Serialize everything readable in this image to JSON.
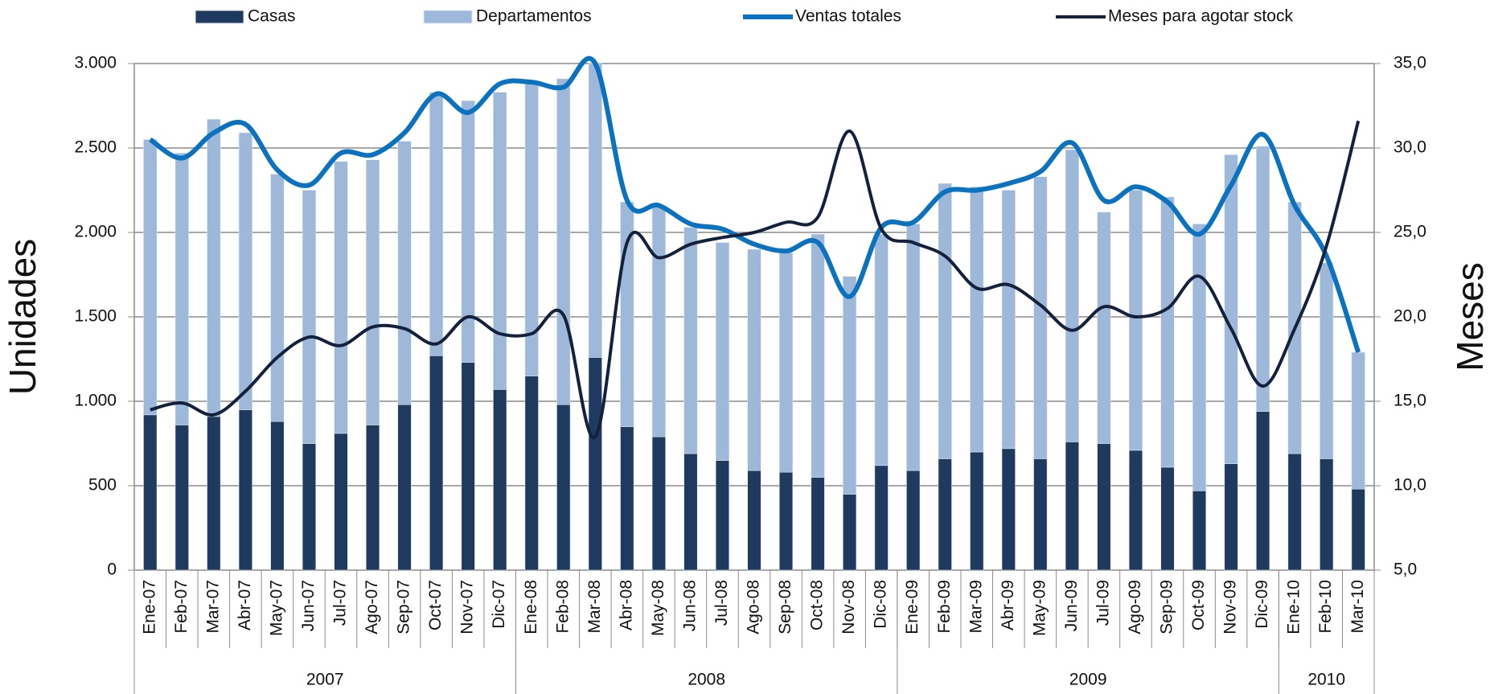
{
  "chart_data": {
    "type": "bar",
    "y_label": "Unidades",
    "y2_label": "Meses",
    "groups": [
      {
        "name": "2007",
        "categories": [
          "Ene-07",
          "Feb-07",
          "Mar-07",
          "Abr-07",
          "May-07",
          "Jun-07",
          "Jul-07",
          "Ago-07",
          "Sep-07",
          "Oct-07",
          "Nov-07",
          "Dic-07"
        ]
      },
      {
        "name": "2008",
        "categories": [
          "Ene-08",
          "Feb-08",
          "Mar-08",
          "Abr-08",
          "May-08",
          "Jun-08",
          "Jul-08",
          "Ago-08",
          "Sep-08",
          "Oct-08",
          "Nov-08",
          "Dic-08"
        ]
      },
      {
        "name": "2009",
        "categories": [
          "Ene-09",
          "Feb-09",
          "Mar-09",
          "Abr-09",
          "May-09",
          "Jun-09",
          "Jul-09",
          "Ago-09",
          "Sep-09",
          "Oct-09",
          "Nov-09",
          "Dic-09"
        ]
      },
      {
        "name": "2010",
        "categories": [
          "Ene-10",
          "Feb-10",
          "Mar-10"
        ]
      }
    ],
    "series": [
      {
        "name": "Casas",
        "type": "bar",
        "color": "#1f3a5f",
        "values": [
          920,
          860,
          910,
          950,
          880,
          750,
          810,
          860,
          980,
          1270,
          1230,
          1070,
          1150,
          980,
          1260,
          850,
          790,
          690,
          650,
          590,
          580,
          550,
          450,
          620,
          590,
          660,
          700,
          720,
          660,
          760,
          750,
          710,
          610,
          470,
          630,
          940,
          690,
          660,
          480
        ]
      },
      {
        "name": "Departamentos",
        "type": "bar",
        "color": "#9db8d9",
        "values": [
          1630,
          1610,
          1760,
          1640,
          1465,
          1500,
          1610,
          1570,
          1560,
          1560,
          1550,
          1760,
          1730,
          1930,
          1740,
          1330,
          1360,
          1340,
          1290,
          1310,
          1300,
          1440,
          1290,
          1370,
          1460,
          1630,
          1570,
          1530,
          1670,
          1730,
          1370,
          1540,
          1600,
          1580,
          1830,
          1570,
          1490,
          1160,
          810
        ]
      },
      {
        "name": "Ventas totales",
        "type": "line",
        "color": "#0b72c0",
        "values": [
          2550,
          2440,
          2590,
          2640,
          2370,
          2280,
          2470,
          2460,
          2590,
          2820,
          2710,
          2880,
          2890,
          2860,
          3000,
          2190,
          2160,
          2050,
          2020,
          1930,
          1890,
          1940,
          1620,
          2030,
          2060,
          2240,
          2250,
          2290,
          2360,
          2530,
          2190,
          2270,
          2180,
          1990,
          2280,
          2580,
          2160,
          1860,
          1290
        ]
      },
      {
        "name": "Meses para agotar stock",
        "type": "line",
        "axis": "y2",
        "color": "#14213d",
        "values": [
          14.5,
          14.9,
          14.2,
          15.6,
          17.6,
          18.8,
          18.3,
          19.4,
          19.3,
          18.4,
          20.0,
          19.0,
          19.0,
          20.1,
          12.9,
          24.4,
          23.5,
          24.3,
          24.7,
          25.0,
          25.6,
          25.9,
          31.0,
          25.2,
          24.4,
          23.6,
          21.7,
          21.9,
          20.7,
          19.2,
          20.6,
          20.0,
          20.5,
          22.4,
          19.3,
          15.9,
          19.3,
          24.2,
          31.6
        ]
      }
    ],
    "ylim": [
      0,
      3000
    ],
    "yticks": [
      0,
      500,
      {
        "value": 1000,
        "label": "1.000"
      },
      {
        "value": 1500,
        "label": "1.500"
      },
      {
        "value": 2000,
        "label": "2.000"
      },
      {
        "value": 2500,
        "label": "2.500"
      },
      {
        "value": 3000,
        "label": "3.000"
      }
    ],
    "y2lim": [
      5,
      35
    ],
    "y2ticks": [
      {
        "value": 5,
        "label": "5,0"
      },
      {
        "value": 10,
        "label": "10,0"
      },
      {
        "value": 15,
        "label": "15,0"
      },
      {
        "value": 20,
        "label": "20,0"
      },
      {
        "value": 25,
        "label": "25,0"
      },
      {
        "value": 30,
        "label": "30,0"
      },
      {
        "value": 35,
        "label": "35,0"
      }
    ],
    "grid": true,
    "legend": "top"
  }
}
